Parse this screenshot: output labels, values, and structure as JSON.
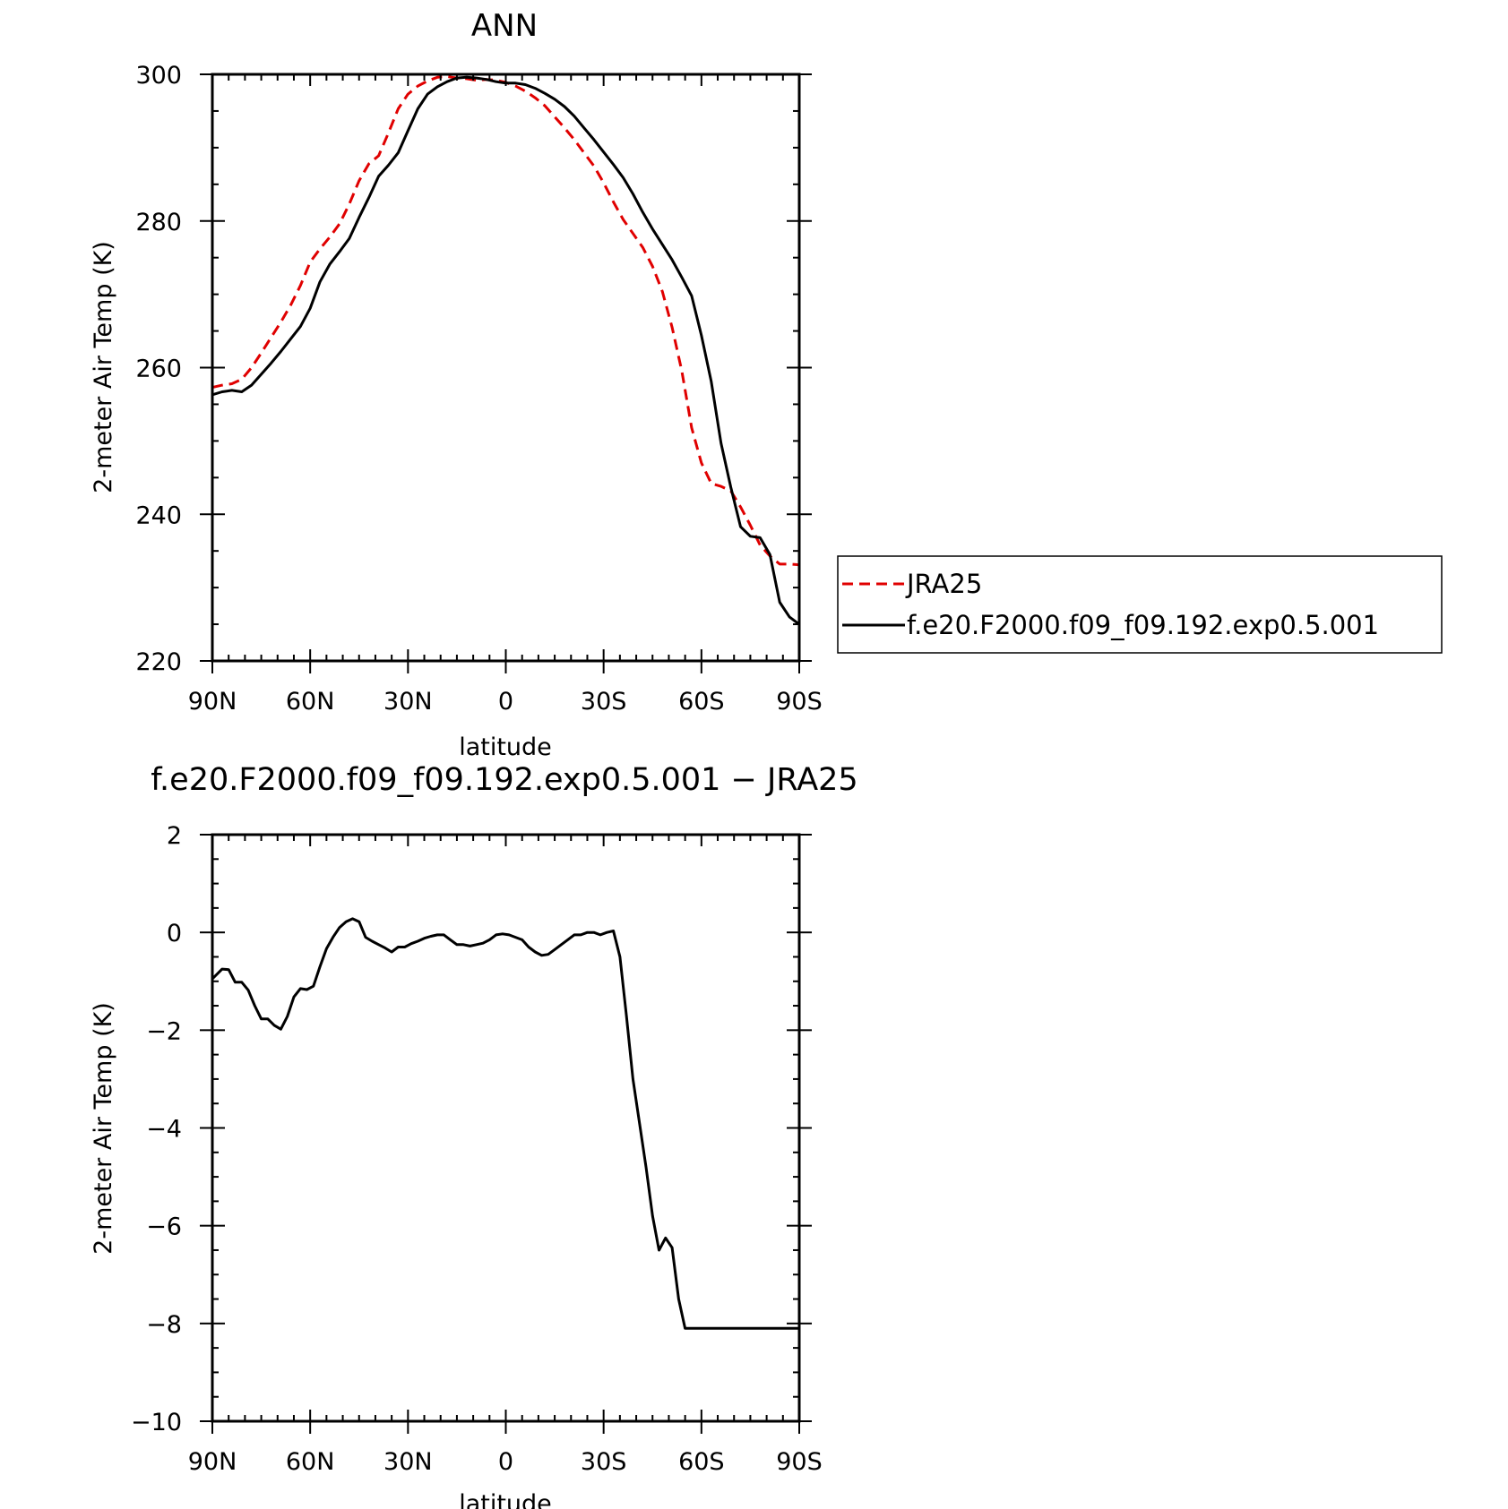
{
  "chart_data": [
    {
      "type": "line",
      "title": "ANN",
      "xlabel": "latitude",
      "ylabel": "2-meter Air Temp (K)",
      "xlim": [
        90,
        -90
      ],
      "ylim": [
        220,
        300
      ],
      "xticks": [
        90,
        60,
        30,
        0,
        -30,
        -60,
        -90
      ],
      "xtick_labels": [
        "90N",
        "60N",
        "30N",
        "0",
        "30S",
        "60S",
        "90S"
      ],
      "yticks": [
        220,
        240,
        260,
        280,
        300
      ],
      "ytick_labels": [
        "220",
        "240",
        "260",
        "280",
        "300"
      ],
      "legend_position": "right",
      "series": [
        {
          "name": "JRA25",
          "color": "#e00000",
          "style": "dashed",
          "x": [
            90,
            87,
            84,
            81,
            78,
            75,
            72,
            69,
            66,
            63,
            60,
            57,
            54,
            51,
            48,
            45,
            42,
            39,
            36,
            33,
            30,
            27,
            24,
            21,
            18,
            15,
            12,
            9,
            6,
            3,
            0,
            -3,
            -6,
            -9,
            -12,
            -15,
            -18,
            -21,
            -24,
            -27,
            -30,
            -33,
            -36,
            -39,
            -42,
            -45,
            -48,
            -51,
            -54,
            -57,
            -60,
            -63,
            -66,
            -69,
            -72,
            -75,
            -78,
            -81,
            -84,
            -87,
            -90
          ],
          "y": [
            257.3,
            257.6,
            257.8,
            258.4,
            260.0,
            262.0,
            264.1,
            266.2,
            268.5,
            271.2,
            274.4,
            276.2,
            277.8,
            279.6,
            282.3,
            285.5,
            287.8,
            288.9,
            292.0,
            295.3,
            297.3,
            298.4,
            299.1,
            299.6,
            299.7,
            299.5,
            299.4,
            299.2,
            299.3,
            299.2,
            298.9,
            298.4,
            297.7,
            296.8,
            295.7,
            294.2,
            292.7,
            291.1,
            289.3,
            287.5,
            285.2,
            282.6,
            280.2,
            278.3,
            276.4,
            273.8,
            270.4,
            265.5,
            259.5,
            251.8,
            247.0,
            244.2,
            243.8,
            243.2,
            241.0,
            238.5,
            235.8,
            234.3,
            233.2,
            233.2,
            233.1
          ]
        },
        {
          "name": "f.e20.F2000.f09_f09.192.exp0.5.001",
          "color": "#000000",
          "style": "solid",
          "x": [
            90,
            87,
            84,
            81,
            78,
            75,
            72,
            69,
            66,
            63,
            60,
            57,
            54,
            51,
            48,
            45,
            42,
            39,
            36,
            33,
            30,
            27,
            24,
            21,
            18,
            15,
            12,
            9,
            6,
            3,
            0,
            -3,
            -6,
            -9,
            -12,
            -15,
            -18,
            -21,
            -24,
            -27,
            -30,
            -33,
            -36,
            -39,
            -42,
            -45,
            -48,
            -51,
            -54,
            -57,
            -60,
            -63,
            -66,
            -69,
            -72,
            -75,
            -78,
            -81,
            -84,
            -87,
            -90
          ],
          "y": [
            256.3,
            256.7,
            256.9,
            256.7,
            257.6,
            259.1,
            260.6,
            262.2,
            263.9,
            265.6,
            268.1,
            271.7,
            274.1,
            275.8,
            277.6,
            280.5,
            283.2,
            286.1,
            287.6,
            289.3,
            292.3,
            295.3,
            297.3,
            298.3,
            299.0,
            299.5,
            299.6,
            299.5,
            299.3,
            299.0,
            298.8,
            298.8,
            298.6,
            298.1,
            297.4,
            296.6,
            295.6,
            294.3,
            292.7,
            291.1,
            289.4,
            287.7,
            285.9,
            283.7,
            281.2,
            278.9,
            276.8,
            274.7,
            272.3,
            269.8,
            264.4,
            258.1,
            249.7,
            243.7,
            238.3,
            237.0,
            236.8,
            234.5,
            228.0,
            226.0,
            225.0
          ]
        }
      ]
    },
    {
      "type": "line",
      "title": "f.e20.F2000.f09_f09.192.exp0.5.001 − JRA25",
      "xlabel": "latitude",
      "ylabel": "2-meter Air Temp (K)",
      "xlim": [
        90,
        -90
      ],
      "ylim": [
        -10,
        2
      ],
      "xticks": [
        90,
        60,
        30,
        0,
        -30,
        -60,
        -90
      ],
      "xtick_labels": [
        "90N",
        "60N",
        "30N",
        "0",
        "30S",
        "60S",
        "90S"
      ],
      "yticks": [
        -10,
        -8,
        -6,
        -4,
        -2,
        0,
        2
      ],
      "ytick_labels": [
        "−10",
        "−8",
        "−6",
        "−4",
        "−2",
        "0",
        "2"
      ],
      "series": [
        {
          "color": "#000000",
          "style": "solid",
          "x": [
            90,
            87,
            85,
            83,
            81,
            79,
            77,
            75,
            73,
            71,
            69,
            67,
            65,
            63,
            61,
            59,
            57,
            55,
            53,
            51,
            49,
            47,
            45,
            43,
            41,
            39,
            37,
            35,
            33,
            31,
            29,
            27,
            25,
            23,
            21,
            19,
            17,
            15,
            13,
            11,
            9,
            7,
            5,
            3,
            1,
            -1,
            -3,
            -5,
            -7,
            -9,
            -11,
            -13,
            -15,
            -17,
            -19,
            -21,
            -23,
            -25,
            -27,
            -29,
            -31,
            -33,
            -35,
            -37,
            -39,
            -41,
            -43,
            -45,
            -47,
            -49,
            -51,
            -53,
            -55,
            -57,
            -59,
            -61,
            -63,
            -65,
            -67,
            -69,
            -71,
            -73,
            -75,
            -77,
            -79,
            -81,
            -83,
            -85,
            -87,
            -89,
            -90
          ],
          "y": [
            -0.95,
            -0.75,
            -0.76,
            -1.02,
            -1.02,
            -1.18,
            -1.5,
            -1.77,
            -1.77,
            -1.9,
            -1.98,
            -1.72,
            -1.32,
            -1.15,
            -1.17,
            -1.1,
            -0.7,
            -0.33,
            -0.1,
            0.1,
            0.22,
            0.28,
            0.22,
            -0.1,
            -0.18,
            -0.25,
            -0.32,
            -0.4,
            -0.3,
            -0.3,
            -0.23,
            -0.18,
            -0.12,
            -0.08,
            -0.05,
            -0.05,
            -0.15,
            -0.25,
            -0.25,
            -0.28,
            -0.25,
            -0.22,
            -0.15,
            -0.05,
            -0.03,
            -0.05,
            -0.1,
            -0.15,
            -0.3,
            -0.4,
            -0.47,
            -0.45,
            -0.35,
            -0.25,
            -0.15,
            -0.05,
            -0.05,
            0.0,
            0.0,
            -0.05,
            0.0,
            0.03,
            -0.5,
            -1.7,
            -3.0,
            -3.9,
            -4.8,
            -5.8,
            -6.5,
            -6.25,
            -6.45,
            -7.5,
            -8.1,
            -8.1,
            -8.1,
            -8.1,
            -8.1,
            -8.1,
            -8.1,
            -8.1,
            -8.1,
            -8.1,
            -8.1,
            -8.1,
            -8.1,
            -8.1,
            -8.1,
            -8.1,
            -8.1,
            -8.1,
            -8.1
          ]
        }
      ]
    }
  ]
}
